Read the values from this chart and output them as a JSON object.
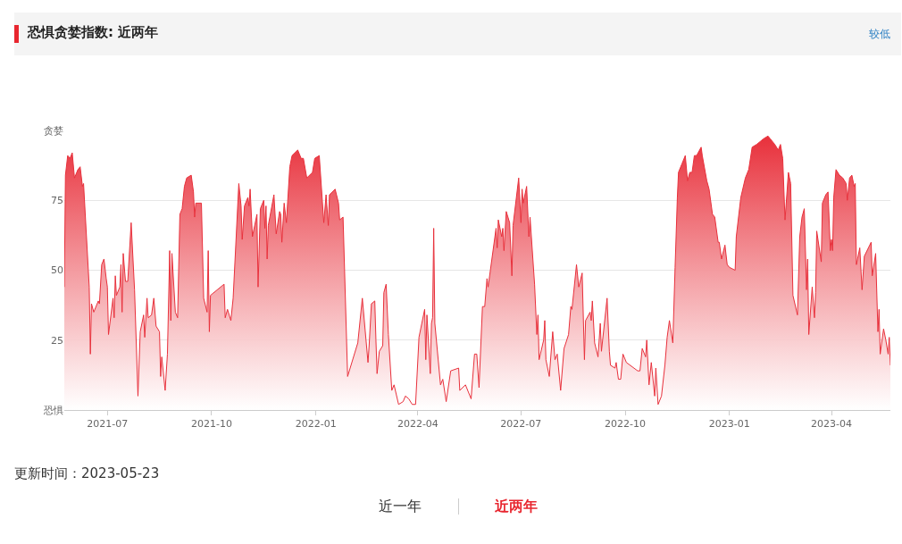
{
  "chart_data": {
    "type": "area",
    "title": "恐惧贪婪指数: 近两年",
    "annotations": [
      "较低",
      "更新时间：2023-05-23",
      "近一年",
      "近两年"
    ],
    "xlim": [
      "2021-05-24",
      "2023-05-23"
    ],
    "xticks": [
      {
        "value": "2021-07-01",
        "label": "2021-07"
      },
      {
        "value": "2021-10-01",
        "label": "2021-10"
      },
      {
        "value": "2022-01-01",
        "label": "2022-01"
      },
      {
        "value": "2022-04-01",
        "label": "2022-04"
      },
      {
        "value": "2022-07-01",
        "label": "2022-07"
      },
      {
        "value": "2022-10-01",
        "label": "2022-10"
      },
      {
        "value": "2023-01-01",
        "label": "2023-01"
      },
      {
        "value": "2023-04-01",
        "label": "2023-04"
      }
    ],
    "ylim": [
      0,
      100
    ],
    "yticks": [
      {
        "value": 0,
        "label": "恐惧"
      },
      25,
      50,
      75,
      {
        "value": 100,
        "label": "贪婪"
      }
    ],
    "grid": "y",
    "marker": "none",
    "line_style": "solid",
    "x": [
      "2021-05-24",
      "2021-05-25",
      "2021-05-27",
      "2021-05-29",
      "2021-05-31",
      "2021-06-02",
      "2021-06-05",
      "2021-06-07",
      "2021-06-09",
      "2021-06-10",
      "2021-06-15",
      "2021-06-16",
      "2021-06-17",
      "2021-06-19",
      "2021-06-23",
      "2021-06-24",
      "2021-06-26",
      "2021-06-28",
      "2021-06-30",
      "2021-07-01",
      "2021-07-02",
      "2021-07-06",
      "2021-07-07",
      "2021-07-08",
      "2021-07-09",
      "2021-07-12",
      "2021-07-13",
      "2021-07-14",
      "2021-07-15",
      "2021-07-17",
      "2021-07-19",
      "2021-07-22",
      "2021-07-25",
      "2021-07-28",
      "2021-07-30",
      "2021-08-02",
      "2021-08-03",
      "2021-08-05",
      "2021-08-06",
      "2021-08-09",
      "2021-08-11",
      "2021-08-13",
      "2021-08-16",
      "2021-08-17",
      "2021-08-18",
      "2021-08-21",
      "2021-08-23",
      "2021-08-25",
      "2021-08-26",
      "2021-08-27",
      "2021-08-30",
      "2021-09-01",
      "2021-09-03",
      "2021-09-05",
      "2021-09-07",
      "2021-09-09",
      "2021-09-13",
      "2021-09-15",
      "2021-09-16",
      "2021-09-17",
      "2021-09-22",
      "2021-09-24",
      "2021-09-27",
      "2021-09-28",
      "2021-09-29",
      "2021-09-30",
      "2021-10-12",
      "2021-10-13",
      "2021-10-15",
      "2021-10-18",
      "2021-10-20",
      "2021-10-25",
      "2021-10-27",
      "2021-10-28",
      "2021-10-30",
      "2021-11-02",
      "2021-11-03",
      "2021-11-04",
      "2021-11-06",
      "2021-11-10",
      "2021-11-11",
      "2021-11-13",
      "2021-11-16",
      "2021-11-17",
      "2021-11-18",
      "2021-11-19",
      "2021-11-20",
      "2021-11-25",
      "2021-11-27",
      "2021-11-30",
      "2021-12-01",
      "2021-12-02",
      "2021-12-04",
      "2021-12-06",
      "2021-12-09",
      "2021-12-11",
      "2021-12-16",
      "2021-12-19",
      "2021-12-21",
      "2021-12-24",
      "2021-12-29",
      "2021-12-31",
      "2022-01-04",
      "2022-01-08",
      "2022-01-10",
      "2022-01-12",
      "2022-01-13",
      "2022-01-18",
      "2022-01-21",
      "2022-01-22",
      "2022-01-25",
      "2022-01-29",
      "2022-02-07",
      "2022-02-11",
      "2022-02-16",
      "2022-02-17",
      "2022-02-19",
      "2022-02-22",
      "2022-02-23",
      "2022-02-24",
      "2022-02-26",
      "2022-03-01",
      "2022-03-02",
      "2022-03-04",
      "2022-03-06",
      "2022-03-09",
      "2022-03-11",
      "2022-03-15",
      "2022-03-19",
      "2022-03-21",
      "2022-03-24",
      "2022-03-27",
      "2022-03-30",
      "2022-04-02",
      "2022-04-07",
      "2022-04-08",
      "2022-04-09",
      "2022-04-12",
      "2022-04-13",
      "2022-04-14",
      "2022-04-15",
      "2022-04-16",
      "2022-04-21",
      "2022-04-23",
      "2022-04-26",
      "2022-04-30",
      "2022-05-07",
      "2022-05-08",
      "2022-05-13",
      "2022-05-18",
      "2022-05-21",
      "2022-05-23",
      "2022-05-25",
      "2022-05-28",
      "2022-05-30",
      "2022-06-01",
      "2022-06-02",
      "2022-06-09",
      "2022-06-10",
      "2022-06-11",
      "2022-06-14",
      "2022-06-15",
      "2022-06-16",
      "2022-06-18",
      "2022-06-21",
      "2022-06-23",
      "2022-06-24",
      "2022-06-29",
      "2022-07-01",
      "2022-07-02",
      "2022-07-03",
      "2022-07-06",
      "2022-07-08",
      "2022-07-09",
      "2022-07-13",
      "2022-07-15",
      "2022-07-16",
      "2022-07-17",
      "2022-07-21",
      "2022-07-22",
      "2022-07-23",
      "2022-07-26",
      "2022-07-29",
      "2022-07-31",
      "2022-08-02",
      "2022-08-05",
      "2022-08-08",
      "2022-08-12",
      "2022-08-14",
      "2022-08-15",
      "2022-08-19",
      "2022-08-21",
      "2022-08-24",
      "2022-08-26",
      "2022-08-27",
      "2022-08-31",
      "2022-09-01",
      "2022-09-02",
      "2022-09-04",
      "2022-09-07",
      "2022-09-09",
      "2022-09-10",
      "2022-09-15",
      "2022-09-17",
      "2022-09-18",
      "2022-09-22",
      "2022-09-23",
      "2022-09-25",
      "2022-09-27",
      "2022-09-29",
      "2022-10-02",
      "2022-10-12",
      "2022-10-14",
      "2022-10-16",
      "2022-10-19",
      "2022-10-20",
      "2022-10-22",
      "2022-10-24",
      "2022-10-27",
      "2022-10-28",
      "2022-10-30",
      "2022-11-02",
      "2022-11-05",
      "2022-11-07",
      "2022-11-09",
      "2022-11-12",
      "2022-11-14",
      "2022-11-16",
      "2022-11-17",
      "2022-11-20",
      "2022-11-23",
      "2022-11-25",
      "2022-11-27",
      "2022-11-29",
      "2022-12-01",
      "2022-12-03",
      "2022-12-07",
      "2022-12-08",
      "2022-12-12",
      "2022-12-14",
      "2022-12-17",
      "2022-12-19",
      "2022-12-22",
      "2022-12-23",
      "2022-12-25",
      "2022-12-28",
      "2022-12-30",
      "2023-01-01",
      "2023-01-06",
      "2023-01-07",
      "2023-01-11",
      "2023-01-15",
      "2023-01-18",
      "2023-01-21",
      "2023-01-25",
      "2023-01-31",
      "2023-02-04",
      "2023-02-06",
      "2023-02-10",
      "2023-02-13",
      "2023-02-15",
      "2023-02-17",
      "2023-02-19",
      "2023-02-22",
      "2023-02-24",
      "2023-02-26",
      "2023-03-02",
      "2023-03-04",
      "2023-03-06",
      "2023-03-08",
      "2023-03-10",
      "2023-03-11",
      "2023-03-12",
      "2023-03-15",
      "2023-03-17",
      "2023-03-18",
      "2023-03-19",
      "2023-03-23",
      "2023-03-24",
      "2023-03-27",
      "2023-03-29",
      "2023-03-31",
      "2023-04-01",
      "2023-04-02",
      "2023-04-03",
      "2023-04-05",
      "2023-04-08",
      "2023-04-11",
      "2023-04-14",
      "2023-04-15",
      "2023-04-17",
      "2023-04-19",
      "2023-04-21",
      "2023-04-22",
      "2023-04-23",
      "2023-04-26",
      "2023-04-28",
      "2023-04-30",
      "2023-05-06",
      "2023-05-07",
      "2023-05-10",
      "2023-05-12",
      "2023-05-13",
      "2023-05-14",
      "2023-05-17",
      "2023-05-19",
      "2023-05-21",
      "2023-05-22",
      "2023-05-23"
    ],
    "series": [
      {
        "color": "#e8303b",
        "values": [
          44,
          84,
          91,
          90,
          92,
          83,
          86,
          87,
          80,
          81,
          44,
          20,
          38,
          35,
          39,
          38,
          52,
          54,
          47,
          44,
          27,
          40,
          33,
          48,
          41,
          44,
          52,
          35,
          56,
          46,
          46,
          67,
          43,
          5,
          28,
          34,
          26,
          40,
          33,
          34,
          40,
          30,
          28,
          12,
          19,
          7,
          20,
          57,
          32,
          56,
          35,
          33,
          70,
          72,
          80,
          83,
          84,
          78,
          69,
          74,
          74,
          40,
          35,
          57,
          28,
          41,
          45,
          33,
          36,
          32,
          40,
          81,
          73,
          61,
          73,
          76,
          73,
          79,
          62,
          70,
          44,
          72,
          75,
          65,
          73,
          54,
          66,
          77,
          63,
          71,
          70,
          60,
          74,
          67,
          87,
          91,
          93,
          90,
          90,
          83,
          85,
          90,
          91,
          67,
          77,
          66,
          77,
          79,
          74,
          68,
          69,
          12,
          24,
          40,
          17,
          23,
          38,
          39,
          25,
          13,
          21,
          23,
          42,
          45,
          27,
          7,
          9,
          2,
          3,
          5,
          4,
          2,
          2,
          26,
          36,
          18,
          34,
          13,
          31,
          33,
          65,
          31,
          9,
          11,
          3,
          14,
          15,
          7,
          9,
          4,
          20,
          20,
          8,
          37,
          37,
          47,
          44,
          65,
          58,
          68,
          62,
          65,
          57,
          71,
          67,
          48,
          66,
          83,
          67,
          79,
          74,
          80,
          62,
          69,
          45,
          27,
          34,
          18,
          25,
          32,
          18,
          12,
          28,
          18,
          20,
          7,
          22,
          27,
          37,
          36,
          52,
          44,
          49,
          18,
          32,
          35,
          32,
          39,
          24,
          19,
          31,
          21,
          40,
          21,
          16,
          15,
          17,
          11,
          11,
          20,
          17,
          14,
          14,
          22,
          19,
          25,
          9,
          17,
          5,
          15,
          2,
          5,
          16,
          26,
          32,
          24,
          51,
          76,
          85,
          88,
          91,
          82,
          85,
          85,
          91,
          91,
          94,
          91,
          82,
          79,
          70,
          69,
          60,
          60,
          54,
          59,
          52,
          51,
          50,
          62,
          76,
          83,
          86,
          94,
          95,
          97,
          98,
          97,
          95,
          93,
          95,
          90,
          68,
          85,
          81,
          41,
          34,
          62,
          69,
          72,
          43,
          54,
          27,
          44,
          33,
          42,
          64,
          53,
          74,
          77,
          78,
          57,
          61,
          57,
          76,
          86,
          84,
          83,
          81,
          75,
          83,
          84,
          80,
          81,
          52,
          58,
          43,
          55,
          60,
          48,
          56,
          28,
          36,
          20,
          29,
          25,
          20,
          26,
          16
        ]
      }
    ]
  }
}
